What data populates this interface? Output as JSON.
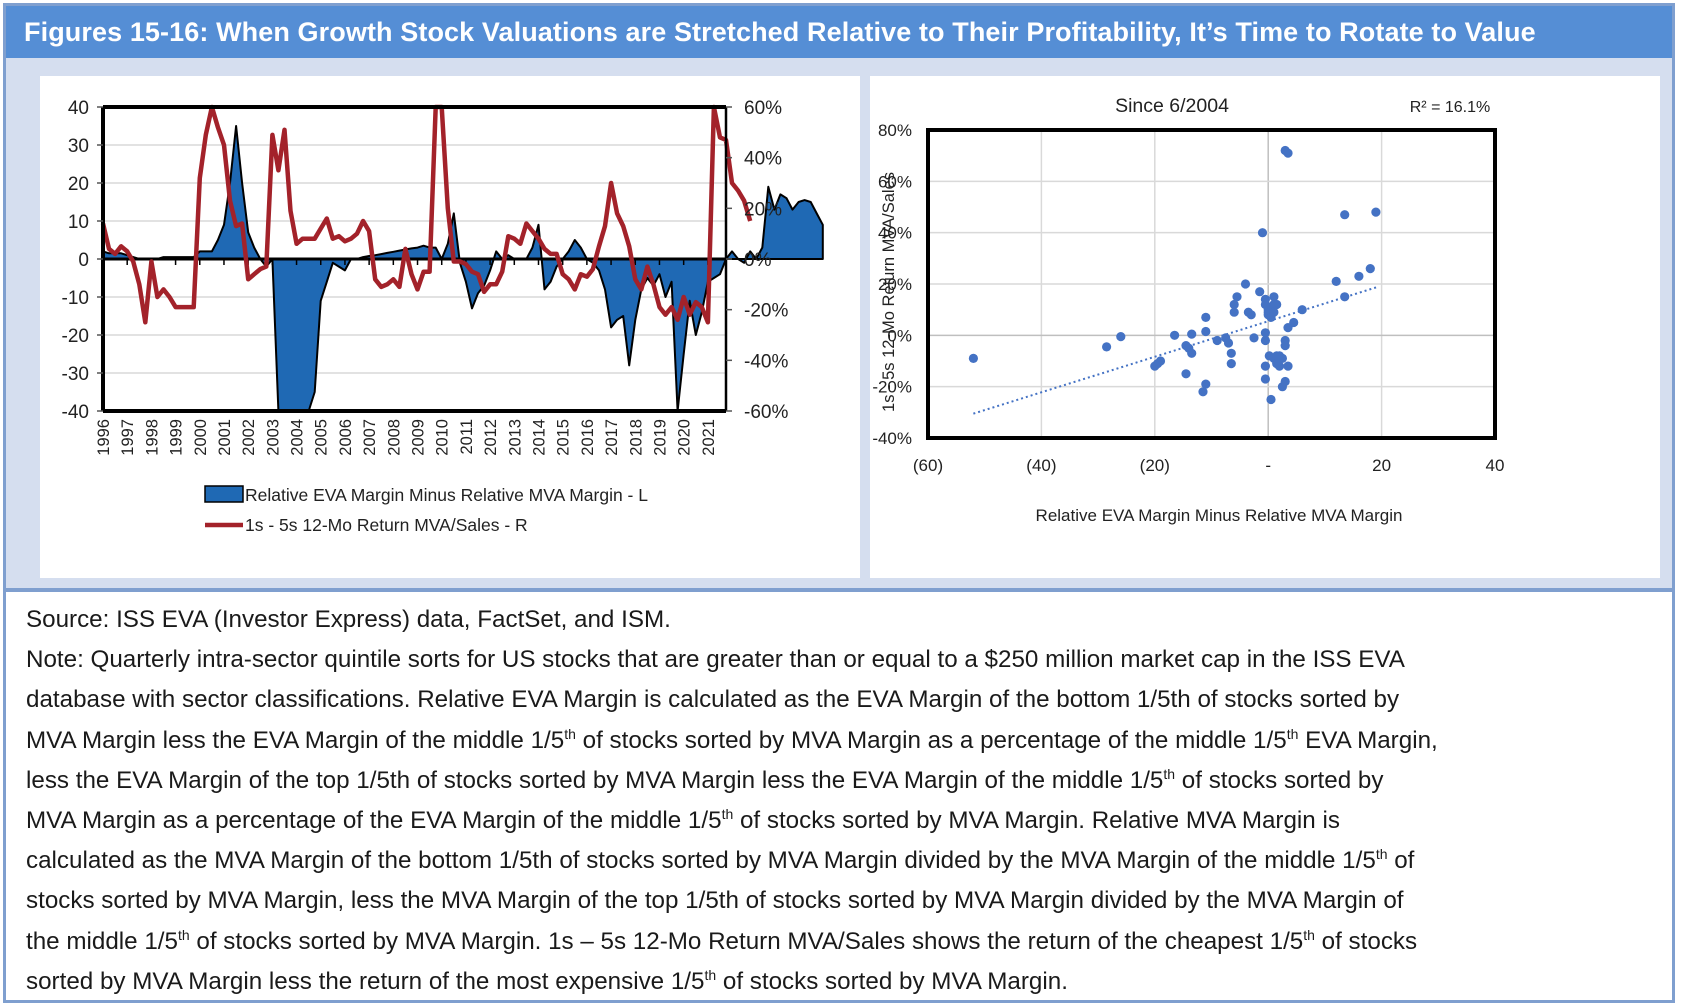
{
  "title": "Figures 15-16: When Growth Stock Valuations are Stretched Relative to Their Profitability, It’s Time to Rotate to Value",
  "colors": {
    "title_bg": "#558ed5",
    "band_bg": "#d5deef",
    "area_fill": "#1f69b4",
    "line": "#a3222a",
    "scatter": "#4472c4"
  },
  "chart_data": [
    {
      "type": "area+line",
      "title": "",
      "legend_position": "bottom",
      "legend": [
        "Relative EVA Margin Minus Relative MVA Margin - L",
        "1s - 5s 12-Mo Return MVA/Sales - R"
      ],
      "x_tick_labels": [
        "1996",
        "1997",
        "1998",
        "1999",
        "2000",
        "2001",
        "2002",
        "2003",
        "2004",
        "2005",
        "2006",
        "2007",
        "2008",
        "2009",
        "2010",
        "2011",
        "2012",
        "2013",
        "2014",
        "2015",
        "2016",
        "2017",
        "2018",
        "2019",
        "2020",
        "2021"
      ],
      "x_range": [
        1996.0,
        2021.75
      ],
      "left_axis": {
        "ticks": [
          "40",
          "30",
          "20",
          "10",
          "0",
          "-10",
          "-20",
          "-30",
          "-40"
        ],
        "ylim": [
          -40,
          40
        ]
      },
      "right_axis": {
        "ticks": [
          "60%",
          "40%",
          "20%",
          "0%",
          "-20%",
          "-40%",
          "-60%"
        ],
        "ylim": [
          -60,
          60
        ]
      },
      "grid": true,
      "series": [
        {
          "name": "Relative EVA Margin Minus Relative MVA Margin - L",
          "type": "area",
          "axis": "left",
          "x_start": 1996.0,
          "x_step": 0.25,
          "values": [
            2,
            1.5,
            1.5,
            1.5,
            1,
            0.5,
            0,
            0,
            0,
            0,
            0.5,
            0.5,
            0.5,
            0.5,
            0.5,
            0.5,
            2,
            2,
            2,
            5,
            9,
            20,
            35,
            20,
            7,
            3,
            0,
            -2,
            0,
            -40,
            -40,
            -40,
            -40,
            -40,
            -40,
            -35,
            -11,
            -6,
            -1,
            -2,
            -3,
            0,
            0,
            0.5,
            0.8,
            1,
            1.3,
            1.6,
            1.9,
            2.2,
            2.5,
            2.8,
            3,
            3.5,
            3,
            3,
            0,
            4,
            12,
            -1,
            -6,
            -13,
            -9,
            -7,
            -3,
            2,
            0,
            1,
            0,
            0,
            0,
            3,
            9,
            -8,
            -6,
            -2,
            0,
            2,
            5,
            3,
            0,
            -1,
            -3,
            -8,
            -18,
            -16,
            -15,
            -28,
            -16,
            -8,
            -5,
            -7,
            -4,
            -10,
            -6,
            -40,
            -25,
            -11,
            -20,
            -14,
            -6,
            -5,
            -4,
            0,
            2,
            0,
            -1,
            2,
            0,
            3,
            19,
            13,
            17,
            16,
            13,
            15,
            15.5,
            15,
            12,
            9
          ]
        },
        {
          "name": "1s - 5s 12-Mo Return MVA/Sales - R",
          "type": "line",
          "axis": "right",
          "x_start": 1996.0,
          "x_step": 0.25,
          "values": [
            14,
            4,
            2,
            5,
            3,
            -1,
            -10,
            -25,
            -1,
            -15,
            -12,
            -15,
            -19,
            -19,
            -19,
            -19,
            32,
            49,
            60,
            52,
            45,
            23,
            13,
            14,
            -8,
            -6,
            -4,
            -3,
            49,
            35,
            51,
            19,
            6,
            8,
            8,
            8,
            12,
            16,
            8,
            9,
            7,
            8,
            10,
            15,
            11,
            -8,
            -11,
            -10,
            -8,
            -11,
            4,
            -6,
            -12,
            -5,
            -5,
            60,
            60,
            20,
            -1,
            -1,
            -2,
            -5,
            -6,
            -13,
            -10,
            -10,
            -5,
            9,
            8,
            6,
            14,
            11,
            8,
            4,
            2,
            2,
            -6,
            -8,
            -12,
            -6,
            -7,
            -4,
            5,
            13,
            30,
            18,
            13,
            5,
            -8,
            -12,
            -3,
            -10,
            -19,
            -22,
            -19,
            -24,
            -15,
            -22,
            -17,
            -19,
            -25,
            60,
            48,
            47,
            30,
            27,
            23,
            15
          ]
        }
      ]
    },
    {
      "type": "scatter",
      "title": "Since 6/2004",
      "annotation": "R² = 16.1%",
      "xlabel": "Relative EVA Margin Minus Relative MVA Margin",
      "ylabel": "1s - 5s 12-Mo Return MVA/Sales",
      "xlim": [
        -60,
        40
      ],
      "ylim": [
        -40,
        80
      ],
      "x_tick_labels": [
        "(60)",
        "(40)",
        "(20)",
        "-",
        "20",
        "40"
      ],
      "y_tick_labels": [
        "80%",
        "60%",
        "40%",
        "20%",
        "0%",
        "-20%",
        "-40%"
      ],
      "grid": true,
      "trendline": {
        "style": "dotted",
        "x": [
          -52,
          19.5
        ],
        "y": [
          -30.5,
          19
        ]
      },
      "points": [
        [
          -52,
          -9
        ],
        [
          -28.5,
          -4.5
        ],
        [
          -26,
          -0.5
        ],
        [
          -20,
          -12
        ],
        [
          -19.5,
          -11
        ],
        [
          -19,
          -10
        ],
        [
          -16.5,
          0
        ],
        [
          -14.5,
          -4
        ],
        [
          -14.5,
          -15
        ],
        [
          -14,
          -5
        ],
        [
          -13.5,
          -7
        ],
        [
          -13.5,
          0.5
        ],
        [
          -11,
          7
        ],
        [
          -11,
          1.5
        ],
        [
          -11,
          -19
        ],
        [
          -11.5,
          -22
        ],
        [
          -9,
          -2
        ],
        [
          -7.5,
          -1
        ],
        [
          -7,
          -3
        ],
        [
          -6.5,
          -7
        ],
        [
          -6.5,
          -11
        ],
        [
          -6,
          12
        ],
        [
          -6,
          9
        ],
        [
          -5.5,
          15
        ],
        [
          -4,
          20
        ],
        [
          -3.5,
          9
        ],
        [
          -3,
          8
        ],
        [
          -2.5,
          -1
        ],
        [
          -1.5,
          17
        ],
        [
          -1,
          40
        ],
        [
          -0.5,
          14
        ],
        [
          -0.5,
          12
        ],
        [
          -0.5,
          1
        ],
        [
          -0.5,
          -2
        ],
        [
          -0.5,
          -12
        ],
        [
          -0.5,
          -17
        ],
        [
          0,
          9
        ],
        [
          0,
          8
        ],
        [
          0,
          10
        ],
        [
          0.2,
          -8
        ],
        [
          0.5,
          11
        ],
        [
          0.5,
          7
        ],
        [
          0.5,
          -25
        ],
        [
          1,
          15
        ],
        [
          1,
          12
        ],
        [
          1,
          9
        ],
        [
          1,
          -9
        ],
        [
          1.5,
          12
        ],
        [
          1.5,
          -8
        ],
        [
          1.5,
          -11
        ],
        [
          2,
          -8
        ],
        [
          2,
          -12
        ],
        [
          2.5,
          -9
        ],
        [
          2.5,
          -20
        ],
        [
          3,
          72
        ],
        [
          3,
          -2
        ],
        [
          3,
          -4
        ],
        [
          3,
          -18
        ],
        [
          3.5,
          71
        ],
        [
          3.5,
          3
        ],
        [
          3.5,
          -12
        ],
        [
          4.5,
          5
        ],
        [
          6,
          10
        ],
        [
          12,
          21
        ],
        [
          13.5,
          47
        ],
        [
          13.5,
          15
        ],
        [
          16,
          23
        ],
        [
          18,
          26
        ],
        [
          19,
          48
        ]
      ]
    }
  ],
  "notes": {
    "source": "Source: ISS EVA (Investor Express) data, FactSet, and ISM.",
    "note_lines": [
      [
        "Note: Quarterly intra-sector quintile sorts for US stocks that are greater than or equal to a $250 million market cap in the ISS EVA"
      ],
      [
        "database with sector classifications. Relative EVA Margin is calculated as the EVA Margin of the bottom 1/5th of stocks sorted by"
      ],
      [
        "MVA Margin less the EVA Margin of the middle 1/5",
        "th",
        " of stocks sorted by MVA Margin as a percentage of the middle 1/5",
        "th",
        " EVA Margin,"
      ],
      [
        "less the EVA Margin of the top 1/5th of stocks  sorted by MVA Margin less the EVA Margin of the middle 1/5",
        "th",
        " of stocks sorted by"
      ],
      [
        "MVA Margin as a percentage of the EVA Margin of the middle 1/5",
        "th",
        " of stocks sorted by MVA Margin. Relative MVA Margin is"
      ],
      [
        "calculated as the MVA Margin of the bottom 1/5th of stocks sorted by MVA Margin divided by the MVA Margin of the middle 1/5",
        "th",
        " of"
      ],
      [
        "stocks sorted by MVA Margin, less the MVA Margin of the top 1/5th of stocks sorted by MVA Margin divided by the MVA Margin of"
      ],
      [
        "the middle 1/5",
        "th",
        " of stocks sorted by MVA Margin. 1s – 5s 12-Mo Return MVA/Sales shows the return of the cheapest 1/5",
        "th",
        " of stocks"
      ],
      [
        "sorted by MVA Margin less the return of the most expensive 1/5",
        "th",
        " of stocks sorted by MVA Margin."
      ]
    ]
  }
}
